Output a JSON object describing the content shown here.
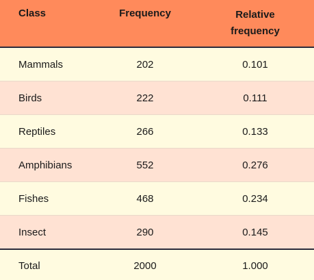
{
  "chart_data": {
    "type": "table",
    "columns": [
      "Class",
      "Frequency",
      "Relative\nfrequency"
    ],
    "column_header_lines": {
      "relative": [
        "Relative",
        "frequency"
      ]
    },
    "rows": [
      {
        "class": "Mammals",
        "frequency": "202",
        "relative": "0.101"
      },
      {
        "class": "Birds",
        "frequency": "222",
        "relative": "0.111"
      },
      {
        "class": "Reptiles",
        "frequency": "266",
        "relative": "0.133"
      },
      {
        "class": "Amphibians",
        "frequency": "552",
        "relative": "0.276"
      },
      {
        "class": "Fishes",
        "frequency": "468",
        "relative": "0.234"
      },
      {
        "class": "Insect",
        "frequency": "290",
        "relative": "0.145"
      }
    ],
    "total": {
      "class": "Total",
      "frequency": "2000",
      "relative": "1.000"
    }
  },
  "colors": {
    "header_bg": "#ff8a5b",
    "row_light": "#fffbe0",
    "row_tint": "#ffe2d3",
    "rule": "#2a2a3a"
  }
}
